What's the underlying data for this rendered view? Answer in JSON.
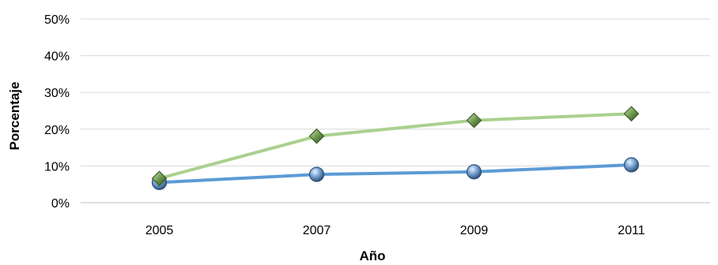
{
  "chart_data": {
    "type": "line",
    "xlabel": "Año",
    "ylabel": "Porcentaje",
    "categories": [
      "2005",
      "2007",
      "2009",
      "2011"
    ],
    "ylim": [
      0,
      50
    ],
    "yticks": [
      "0%",
      "10%",
      "20%",
      "30%",
      "40%",
      "50%"
    ],
    "grid": true,
    "series": [
      {
        "values": [
          5.5,
          7.7,
          8.4,
          10.3
        ],
        "color": "#5B9BD5",
        "marker": "circle",
        "marker_color": "#7FA9D8"
      },
      {
        "values": [
          6.6,
          18.1,
          22.4,
          24.2
        ],
        "color": "#A9D18E",
        "marker": "diamond",
        "marker_color": "#6E9A4E"
      }
    ]
  }
}
